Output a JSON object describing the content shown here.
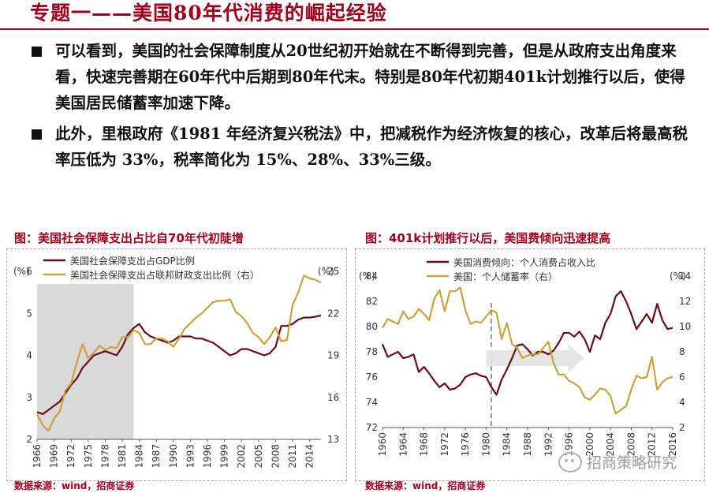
{
  "title": "专题一——美国80年代消费的崛起经验",
  "bullets": [
    "可以看到，美国的社会保障制度从20世纪初开始就在不断得到完善，但是从政府支出角度来看，快速完善期在60年代中后期到80年代末。特别是80年代初期401k计划推行以后，使得美国居民储蓄率加速下降。",
    "此外，里根政府《1981 年经济复兴税法》中，把减税作为经济恢复的核心，改革后将最高税率压低为 33%，税率简化为 15%、28%、33%三级。"
  ],
  "chart1": {
    "caption": "图：美国社会保障支出占比自70年代初陡增",
    "source": "数据来源：wind，招商证券"
  },
  "chart2": {
    "caption": "图：401k计划推行以后，美国费倾向迅速提高",
    "source": "数据来源：wind，招商证券"
  },
  "watermark": "招商策略研究",
  "colors": {
    "red": "#A0001B",
    "dark_red": "#6B0A1A",
    "gold": "#C9A23A",
    "shade": "#D9D9D9"
  },
  "chart_data": [
    {
      "type": "line",
      "title": "图：美国社会保障支出占比自70年代初陡增",
      "left_unit": "(%)",
      "right_unit": "(%)",
      "xlabel": "",
      "ylabel": "",
      "x_range": [
        1966,
        2016
      ],
      "ylim_left": [
        2,
        6
      ],
      "ylim_right": [
        13,
        25
      ],
      "left_ticks": [
        "2",
        "3",
        "4",
        "5",
        "6"
      ],
      "right_ticks": [
        "13",
        "16",
        "19",
        "22",
        "25"
      ],
      "x_ticks": [
        "1966",
        "1969",
        "1972",
        "1975",
        "1978",
        "1981",
        "1984",
        "1987",
        "1990",
        "1993",
        "1996",
        "1999",
        "2002",
        "2005",
        "2008",
        "2011",
        "2014"
      ],
      "shaded_span": [
        1966,
        1983
      ],
      "series": [
        {
          "name": "美国社会保障支出占GDP比例",
          "axis": "left",
          "x": [
            1966,
            1967,
            1968,
            1969,
            1970,
            1971,
            1972,
            1973,
            1974,
            1975,
            1976,
            1977,
            1978,
            1979,
            1980,
            1981,
            1982,
            1983,
            1984,
            1985,
            1986,
            1987,
            1988,
            1989,
            1990,
            1991,
            1992,
            1993,
            1994,
            1995,
            1996,
            1997,
            1998,
            1999,
            2000,
            2001,
            2002,
            2003,
            2004,
            2005,
            2006,
            2007,
            2008,
            2009,
            2010,
            2011,
            2012,
            2013,
            2014,
            2015,
            2016
          ],
          "values": [
            2.65,
            2.6,
            2.7,
            2.8,
            2.9,
            3.1,
            3.3,
            3.45,
            3.7,
            3.85,
            4.0,
            4.05,
            4.1,
            4.05,
            4.0,
            4.2,
            4.5,
            4.65,
            4.75,
            4.55,
            4.45,
            4.4,
            4.35,
            4.3,
            4.35,
            4.45,
            4.45,
            4.45,
            4.4,
            4.4,
            4.35,
            4.3,
            4.2,
            4.1,
            4.0,
            4.05,
            4.15,
            4.15,
            4.1,
            4.05,
            4.0,
            4.05,
            4.2,
            4.7,
            4.7,
            4.75,
            4.85,
            4.9,
            4.9,
            4.92,
            4.95
          ]
        },
        {
          "name": "美国社会保障支出占联邦财政支出比例（右）",
          "axis": "right",
          "x": [
            1966,
            1967,
            1968,
            1969,
            1970,
            1971,
            1972,
            1973,
            1974,
            1975,
            1976,
            1977,
            1978,
            1979,
            1980,
            1981,
            1982,
            1983,
            1984,
            1985,
            1986,
            1987,
            1988,
            1989,
            1990,
            1991,
            1992,
            1993,
            1994,
            1995,
            1996,
            1997,
            1998,
            1999,
            2000,
            2001,
            2002,
            2003,
            2004,
            2005,
            2006,
            2007,
            2008,
            2009,
            2010,
            2011,
            2012,
            2013,
            2014,
            2015,
            2016
          ],
          "values": [
            14.8,
            14.0,
            13.6,
            14.5,
            15.0,
            16.5,
            17.0,
            18.5,
            19.8,
            18.8,
            19.2,
            19.7,
            19.4,
            19.6,
            19.5,
            20.3,
            20.3,
            20.8,
            20.6,
            19.8,
            19.8,
            20.2,
            20.2,
            20.0,
            19.6,
            20.2,
            20.9,
            21.3,
            21.7,
            22.0,
            22.4,
            22.8,
            22.9,
            22.9,
            23.0,
            22.1,
            21.8,
            21.3,
            20.6,
            20.3,
            19.8,
            20.3,
            21.0,
            20.0,
            20.1,
            22.6,
            23.5,
            24.7,
            24.5,
            24.4,
            24.2
          ]
        }
      ]
    },
    {
      "type": "line",
      "title": "图：401k计划推行以后，美国费倾向迅速提高",
      "left_unit": "(%)",
      "right_unit": "(%)",
      "xlabel": "",
      "ylabel": "",
      "x_range": [
        1960,
        2016
      ],
      "ylim_left": [
        72,
        84
      ],
      "ylim_right": [
        2,
        14
      ],
      "left_ticks": [
        "72",
        "74",
        "76",
        "78",
        "80",
        "82",
        "84"
      ],
      "right_ticks": [
        "2",
        "4",
        "6",
        "8",
        "10",
        "12",
        "14"
      ],
      "x_ticks": [
        "1960",
        "1964",
        "1968",
        "1972",
        "1976",
        "1980",
        "1984",
        "1988",
        "1992",
        "1996",
        "2000",
        "2004",
        "2008",
        "2012",
        "2016"
      ],
      "marker_year": 1981,
      "series": [
        {
          "name": "美国消费倾向：个人消费占收入比",
          "axis": "left",
          "x": [
            1960,
            1961,
            1962,
            1963,
            1964,
            1965,
            1966,
            1967,
            1968,
            1969,
            1970,
            1971,
            1972,
            1973,
            1974,
            1975,
            1976,
            1977,
            1978,
            1979,
            1980,
            1981,
            1982,
            1983,
            1984,
            1985,
            1986,
            1987,
            1988,
            1989,
            1990,
            1991,
            1992,
            1993,
            1994,
            1995,
            1996,
            1997,
            1998,
            1999,
            2000,
            2001,
            2002,
            2003,
            2004,
            2005,
            2006,
            2007,
            2008,
            2009,
            2010,
            2011,
            2012,
            2013,
            2014,
            2015,
            2016
          ],
          "values": [
            78.6,
            77.6,
            77.8,
            78.0,
            77.5,
            77.6,
            77.8,
            76.4,
            76.8,
            76.3,
            75.7,
            75.2,
            75.5,
            75.0,
            75.1,
            75.4,
            76.0,
            76.2,
            76.3,
            76.1,
            76.0,
            75.2,
            74.6,
            75.8,
            76.6,
            77.5,
            78.5,
            78.6,
            78.2,
            77.7,
            78.0,
            78.0,
            77.8,
            78.1,
            78.7,
            79.5,
            79.5,
            79.2,
            79.6,
            79.0,
            78.0,
            79.3,
            79.0,
            80.3,
            81.0,
            82.4,
            82.8,
            82.0,
            81.0,
            79.8,
            80.4,
            81.0,
            80.3,
            81.8,
            80.5,
            79.8,
            79.9
          ]
        },
        {
          "name": "美国：个人储蓄率（右）",
          "axis": "right",
          "x": [
            1960,
            1961,
            1962,
            1963,
            1964,
            1965,
            1966,
            1967,
            1968,
            1969,
            1970,
            1971,
            1972,
            1973,
            1974,
            1975,
            1976,
            1977,
            1978,
            1979,
            1980,
            1981,
            1982,
            1983,
            1984,
            1985,
            1986,
            1987,
            1988,
            1989,
            1990,
            1991,
            1992,
            1993,
            1994,
            1995,
            1996,
            1997,
            1998,
            1999,
            2000,
            2001,
            2002,
            2003,
            2004,
            2005,
            2006,
            2007,
            2008,
            2009,
            2010,
            2011,
            2012,
            2013,
            2014,
            2015,
            2016
          ],
          "values": [
            9.9,
            10.6,
            10.4,
            10.2,
            11.2,
            10.6,
            10.8,
            11.4,
            11.0,
            10.5,
            12.2,
            12.9,
            11.2,
            12.8,
            12.8,
            13.1,
            11.3,
            10.2,
            10.4,
            10.3,
            10.8,
            11.3,
            11.1,
            9.0,
            10.3,
            8.6,
            8.3,
            7.5,
            7.7,
            7.8,
            7.8,
            8.3,
            8.8,
            7.1,
            6.2,
            6.2,
            5.7,
            5.5,
            5.2,
            4.4,
            4.2,
            4.6,
            5.1,
            5.0,
            4.5,
            3.1,
            3.4,
            3.7,
            5.0,
            6.1,
            5.9,
            6.0,
            7.6,
            5.0,
            5.6,
            5.9,
            6.0
          ]
        }
      ]
    }
  ]
}
